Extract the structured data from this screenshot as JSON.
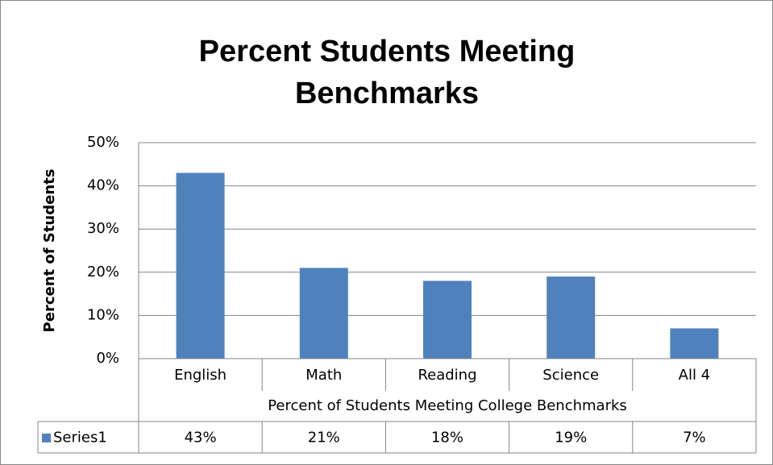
{
  "chart_data": {
    "type": "bar",
    "title": "Percent Students Meeting Benchmarks",
    "x_label": "Percent of Students Meeting College Benchmarks",
    "y_label": "Percent of Students",
    "categories": [
      "English",
      "Math",
      "Reading",
      "Science",
      "All 4"
    ],
    "series": [
      {
        "name": "Series1",
        "color": "#4f81bd",
        "values": [
          43,
          21,
          18,
          19,
          7
        ],
        "value_labels": [
          "43%",
          "21%",
          "18%",
          "19%",
          "7%"
        ]
      }
    ],
    "ylim": [
      0,
      50
    ],
    "yticks": [
      {
        "value": 0,
        "label": "0%"
      },
      {
        "value": 10,
        "label": "10%"
      },
      {
        "value": 20,
        "label": "20%"
      },
      {
        "value": 30,
        "label": "30%"
      },
      {
        "value": 40,
        "label": "40%"
      },
      {
        "value": 50,
        "label": "50%"
      }
    ],
    "grid": true,
    "data_table": true
  }
}
